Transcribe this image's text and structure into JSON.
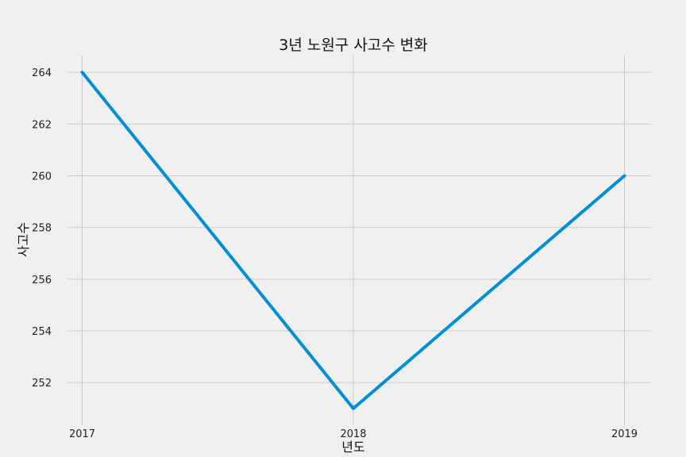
{
  "chart_data": {
    "type": "line",
    "title": "3년 노원구 사고수 변화",
    "xlabel": "년도",
    "ylabel": "사고수",
    "categories": [
      "2017",
      "2018",
      "2019"
    ],
    "series": [
      {
        "values": [
          264,
          251,
          260
        ],
        "color": "#008fd5"
      }
    ],
    "yticks": [
      "252",
      "254",
      "256",
      "258",
      "260",
      "262",
      "264"
    ],
    "ylim": [
      250.35,
      264.65
    ],
    "grid": true,
    "background": "#f0f0f0"
  }
}
